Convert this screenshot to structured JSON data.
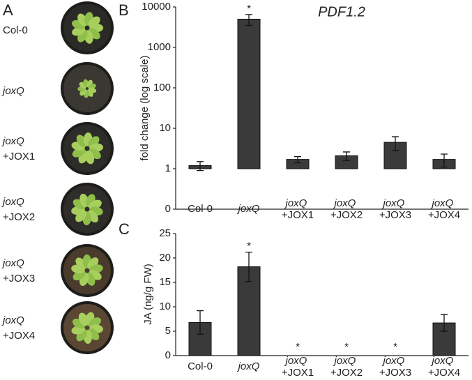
{
  "panel_a": {
    "label": "A",
    "plants": [
      "Col-0",
      "joxQ",
      "joxQ +JOX1",
      "joxQ +JOX2",
      "joxQ +JOX3",
      "joxQ +JOX4"
    ]
  },
  "chart_data": [
    {
      "type": "bar",
      "panel": "B",
      "title": "PDF1.2",
      "y_label": "fold change (log scale)",
      "log_scale": true,
      "color": "#3a3a3a",
      "categories": [
        "Col-0",
        "joxQ",
        "joxQ +JOX1",
        "joxQ +JOX2",
        "joxQ +JOX3",
        "joxQ +JOX4"
      ],
      "values": [
        1.2,
        5000,
        1.7,
        2.1,
        4.5,
        1.7
      ],
      "errors": [
        0.3,
        1500,
        0.3,
        0.5,
        1.7,
        0.6
      ],
      "marks": [
        null,
        "*",
        null,
        null,
        null,
        null
      ],
      "ylim": [
        0.1,
        10000
      ],
      "yticks": [
        {
          "value": 0.1,
          "label": "0"
        },
        1,
        10,
        100,
        1000,
        10000
      ]
    },
    {
      "type": "bar",
      "panel": "C",
      "y_label": "JA (ng/g FW)",
      "log_scale": false,
      "color": "#3a3a3a",
      "categories": [
        "Col-0",
        "joxQ",
        "joxQ +JOX1",
        "joxQ +JOX2",
        "joxQ +JOX3",
        "joxQ +JOX4"
      ],
      "values": [
        6.8,
        18.2,
        0,
        0,
        0,
        6.7
      ],
      "errors": [
        2.4,
        3.0,
        0,
        0,
        0,
        1.7
      ],
      "marks": [
        null,
        "*",
        "*",
        "*",
        "*",
        null
      ],
      "ylim": [
        0,
        25
      ],
      "yticks": [
        0,
        5,
        10,
        15,
        20,
        25
      ]
    }
  ]
}
